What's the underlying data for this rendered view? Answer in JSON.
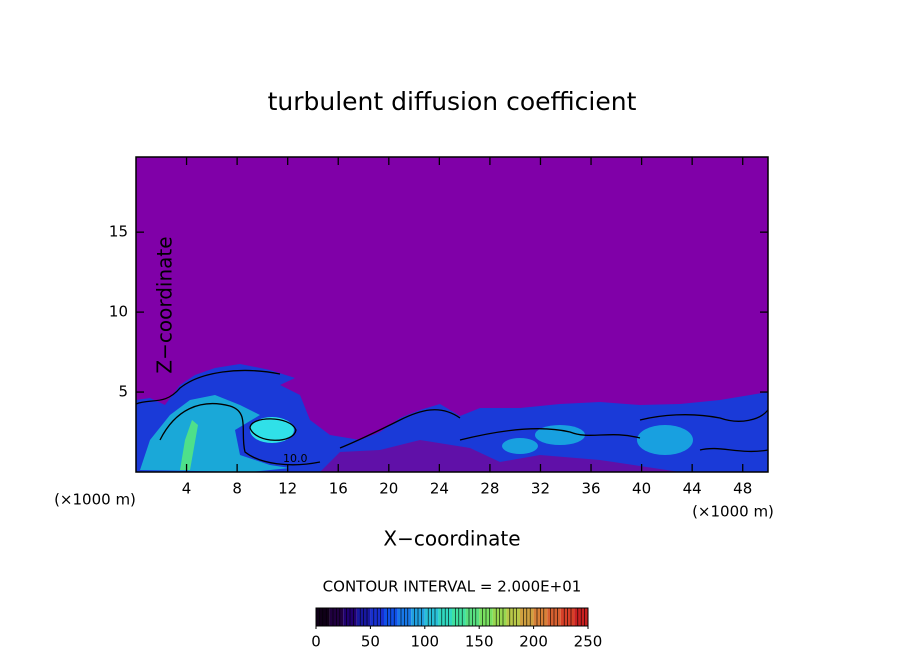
{
  "chart_data": {
    "type": "contour",
    "title": "turbulent diffusion coefficient",
    "xlabel": "X−coordinate",
    "ylabel": "Z−coordinate",
    "x_unit": "(×1000 m)",
    "y_unit": "(×1000 m)",
    "xlim": [
      0,
      50
    ],
    "xticks": [
      4,
      8,
      12,
      16,
      20,
      24,
      28,
      32,
      36,
      40,
      44,
      48
    ],
    "ylim": [
      0,
      19.7
    ],
    "yticks": [
      5,
      10,
      15
    ],
    "background_color": "#8000a8",
    "annotations": [
      {
        "text": "10.0",
        "x": 12.6,
        "y": 0.8
      }
    ],
    "contour_interval_label": "CONTOUR INTERVAL = 2.000E+01",
    "colorbar": {
      "lim": [
        0,
        250
      ],
      "ticks": [
        0,
        50,
        100,
        150,
        200,
        250
      ],
      "colors": [
        "#100018",
        "#200040",
        "#200070",
        "#1818a0",
        "#1830d0",
        "#1050e8",
        "#1878e8",
        "#20a0e0",
        "#28c0d8",
        "#30d8c0",
        "#40e0a0",
        "#58e080",
        "#78e060",
        "#98d850",
        "#b8c848",
        "#d0a040",
        "#d88038",
        "#d86030",
        "#d84028",
        "#c82020"
      ]
    }
  }
}
